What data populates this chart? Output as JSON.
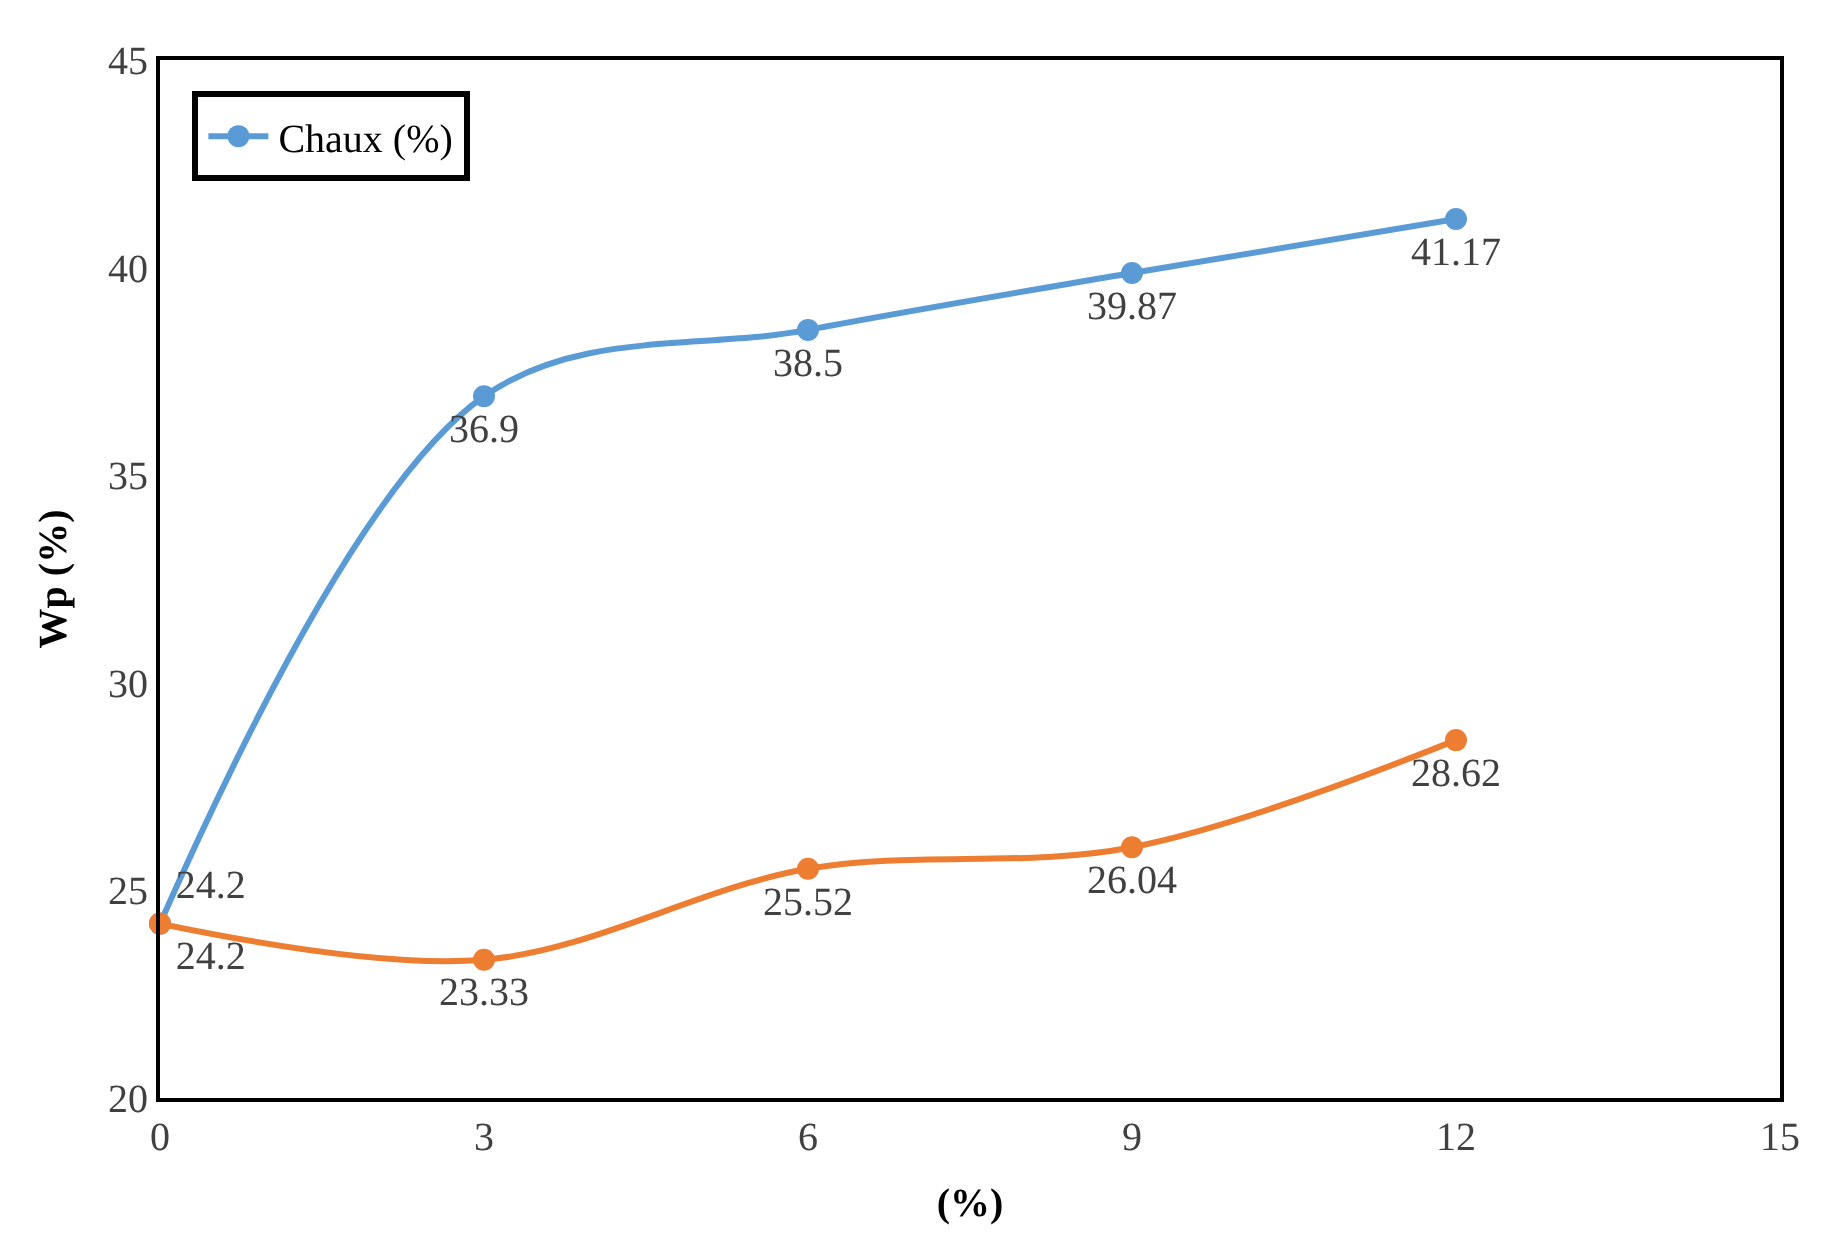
{
  "chart_data": {
    "type": "line",
    "xlabel": "(%)",
    "ylabel": "Wp (%)",
    "x": [
      0,
      3,
      6,
      9,
      12
    ],
    "series": [
      {
        "name": "Chaux (%)",
        "color": "#5b9bd5",
        "values": [
          24.2,
          36.9,
          38.5,
          39.87,
          41.17
        ]
      },
      {
        "color": "#ed7d31",
        "values": [
          24.2,
          23.33,
          25.52,
          26.04,
          28.62
        ]
      }
    ],
    "xlim": [
      0,
      15
    ],
    "xticks": [
      0,
      3,
      6,
      9,
      12,
      15
    ],
    "ylim": [
      20,
      45
    ],
    "yticks": [
      20,
      25,
      30,
      35,
      40,
      45
    ],
    "data_labels": true,
    "marker": "circle",
    "line_style": "solid",
    "grid": false,
    "legend": "top left"
  }
}
